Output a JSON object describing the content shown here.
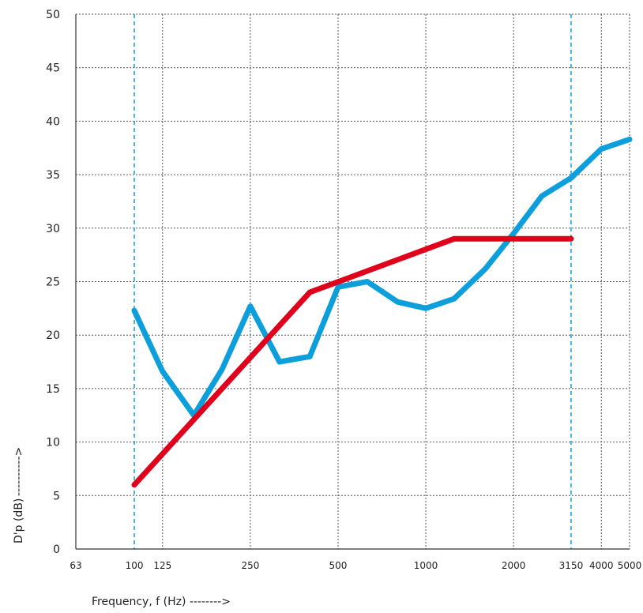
{
  "chart_data": {
    "type": "line",
    "xlabel": "Frequency, f (Hz) -------->",
    "ylabel": "D'p (dB)",
    "ylabel_arrow": "---------->",
    "ylim": [
      0,
      50
    ],
    "y_ticks": [
      0,
      5,
      10,
      15,
      20,
      25,
      30,
      35,
      40,
      45,
      50
    ],
    "x_scale": "log",
    "xlim": [
      63,
      5000
    ],
    "x_ticks": [
      {
        "value": 63,
        "label": "63",
        "highlight": false
      },
      {
        "value": 100,
        "label": "100",
        "highlight": true
      },
      {
        "value": 125,
        "label": "125",
        "highlight": false
      },
      {
        "value": 250,
        "label": "250",
        "highlight": false
      },
      {
        "value": 500,
        "label": "500",
        "highlight": false
      },
      {
        "value": 1000,
        "label": "1000",
        "highlight": false
      },
      {
        "value": 2000,
        "label": "2000",
        "highlight": false
      },
      {
        "value": 3150,
        "label": "3150",
        "highlight": true
      },
      {
        "value": 4000,
        "label": "4000",
        "highlight": false
      },
      {
        "value": 5000,
        "label": "5000",
        "highlight": false
      }
    ],
    "grid": true,
    "series": [
      {
        "color": "#0d9fdc",
        "points": [
          [
            100,
            22.3
          ],
          [
            125,
            16.6
          ],
          [
            160,
            12.5
          ],
          [
            200,
            16.8
          ],
          [
            250,
            22.7
          ],
          [
            315,
            17.5
          ],
          [
            400,
            18.0
          ],
          [
            500,
            24.5
          ],
          [
            630,
            25.0
          ],
          [
            800,
            23.1
          ],
          [
            1000,
            22.5
          ],
          [
            1250,
            23.4
          ],
          [
            1600,
            26.2
          ],
          [
            2000,
            29.5
          ],
          [
            2500,
            33.0
          ],
          [
            3150,
            34.7
          ],
          [
            4000,
            37.4
          ],
          [
            5000,
            38.3
          ]
        ]
      },
      {
        "color": "#e0001b",
        "points": [
          [
            100,
            6.0
          ],
          [
            400,
            24.0
          ],
          [
            1250,
            29.0
          ],
          [
            3150,
            29.0
          ]
        ]
      }
    ],
    "colors": {
      "highlight": "#0d9fdc",
      "grid": "#555555",
      "axis": "#333333"
    }
  }
}
